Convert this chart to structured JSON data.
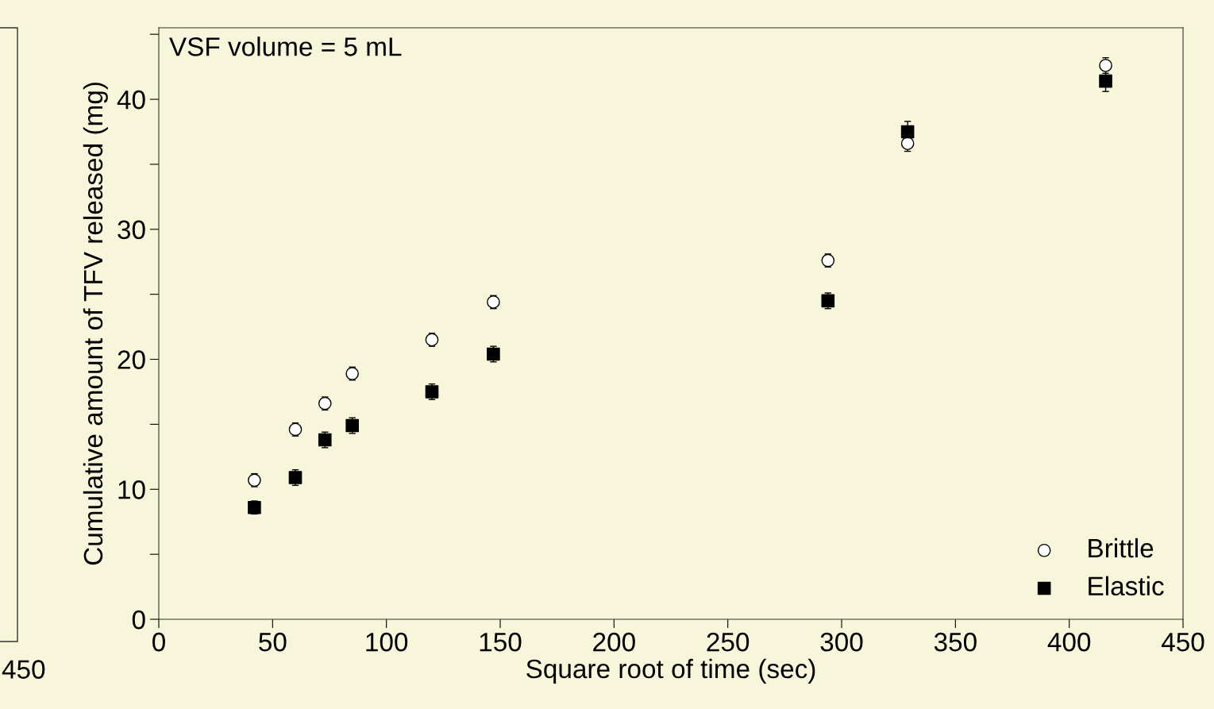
{
  "chart_data": [
    {
      "type": "other",
      "annotations": [
        "450"
      ]
    },
    {
      "type": "scatter",
      "xlabel": "Square root of time (sec)",
      "ylabel": "Cumulative amount of TFV released (mg)",
      "annotations": [
        "VSF volume = 5 mL"
      ],
      "xlim": [
        0,
        450
      ],
      "xticks": [
        0,
        50,
        100,
        150,
        200,
        250,
        300,
        350,
        400,
        450
      ],
      "ylim": [
        0,
        45.5
      ],
      "yticks": [
        0,
        {
          "value": 5,
          "label": null
        },
        10,
        {
          "value": 15,
          "label": null
        },
        20,
        {
          "value": 25,
          "label": null
        },
        30,
        {
          "value": 35,
          "label": null
        },
        40,
        {
          "value": 45,
          "label": null
        }
      ],
      "legend": "bottom right",
      "grid": false,
      "series": [
        {
          "name": "Brittle",
          "color": "#000000",
          "marker": "circle",
          "x": [
            42,
            60,
            73,
            85,
            120,
            147,
            294,
            329,
            416
          ],
          "values": [
            10.7,
            14.6,
            16.6,
            18.9,
            21.5,
            24.4,
            27.6,
            36.6,
            42.6
          ],
          "errors": [
            0.5,
            0.5,
            0.5,
            0.5,
            0.5,
            0.5,
            0.5,
            0.6,
            0.6
          ]
        },
        {
          "name": "Elastic",
          "color": "#000000",
          "marker": "square",
          "x": [
            42,
            60,
            73,
            85,
            120,
            147,
            294,
            329,
            416
          ],
          "values": [
            8.6,
            10.9,
            13.8,
            14.9,
            17.5,
            20.4,
            24.5,
            37.5,
            41.4
          ],
          "errors": [
            0.5,
            0.6,
            0.6,
            0.6,
            0.6,
            0.6,
            0.6,
            0.8,
            0.8
          ]
        }
      ]
    }
  ]
}
